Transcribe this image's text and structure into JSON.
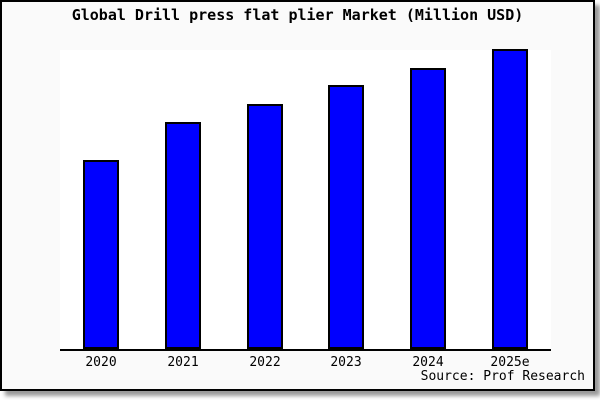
{
  "chart_data": {
    "type": "bar",
    "title": "Global Drill press flat plier Market (Million USD)",
    "source_label": "Source: Prof Research",
    "categories": [
      "2020",
      "2021",
      "2022",
      "2023",
      "2024",
      "2025e"
    ],
    "values_relative": [
      63,
      75.5,
      81.7,
      88,
      93.7,
      100
    ],
    "value_scale_note": "no y-axis labels shown in chart; values are bar heights relative to 2025e = 100",
    "xlabel": "",
    "ylabel": "",
    "ylim": [
      0,
      100.3
    ],
    "grid": false,
    "legend": "none",
    "bar_color": "#0000ff",
    "bar_edge_color": "#000000",
    "plot_bg": "#ffffff",
    "figure_bg": "#fafafa",
    "frame_border_color": "#000000",
    "text_color": "#000000"
  }
}
